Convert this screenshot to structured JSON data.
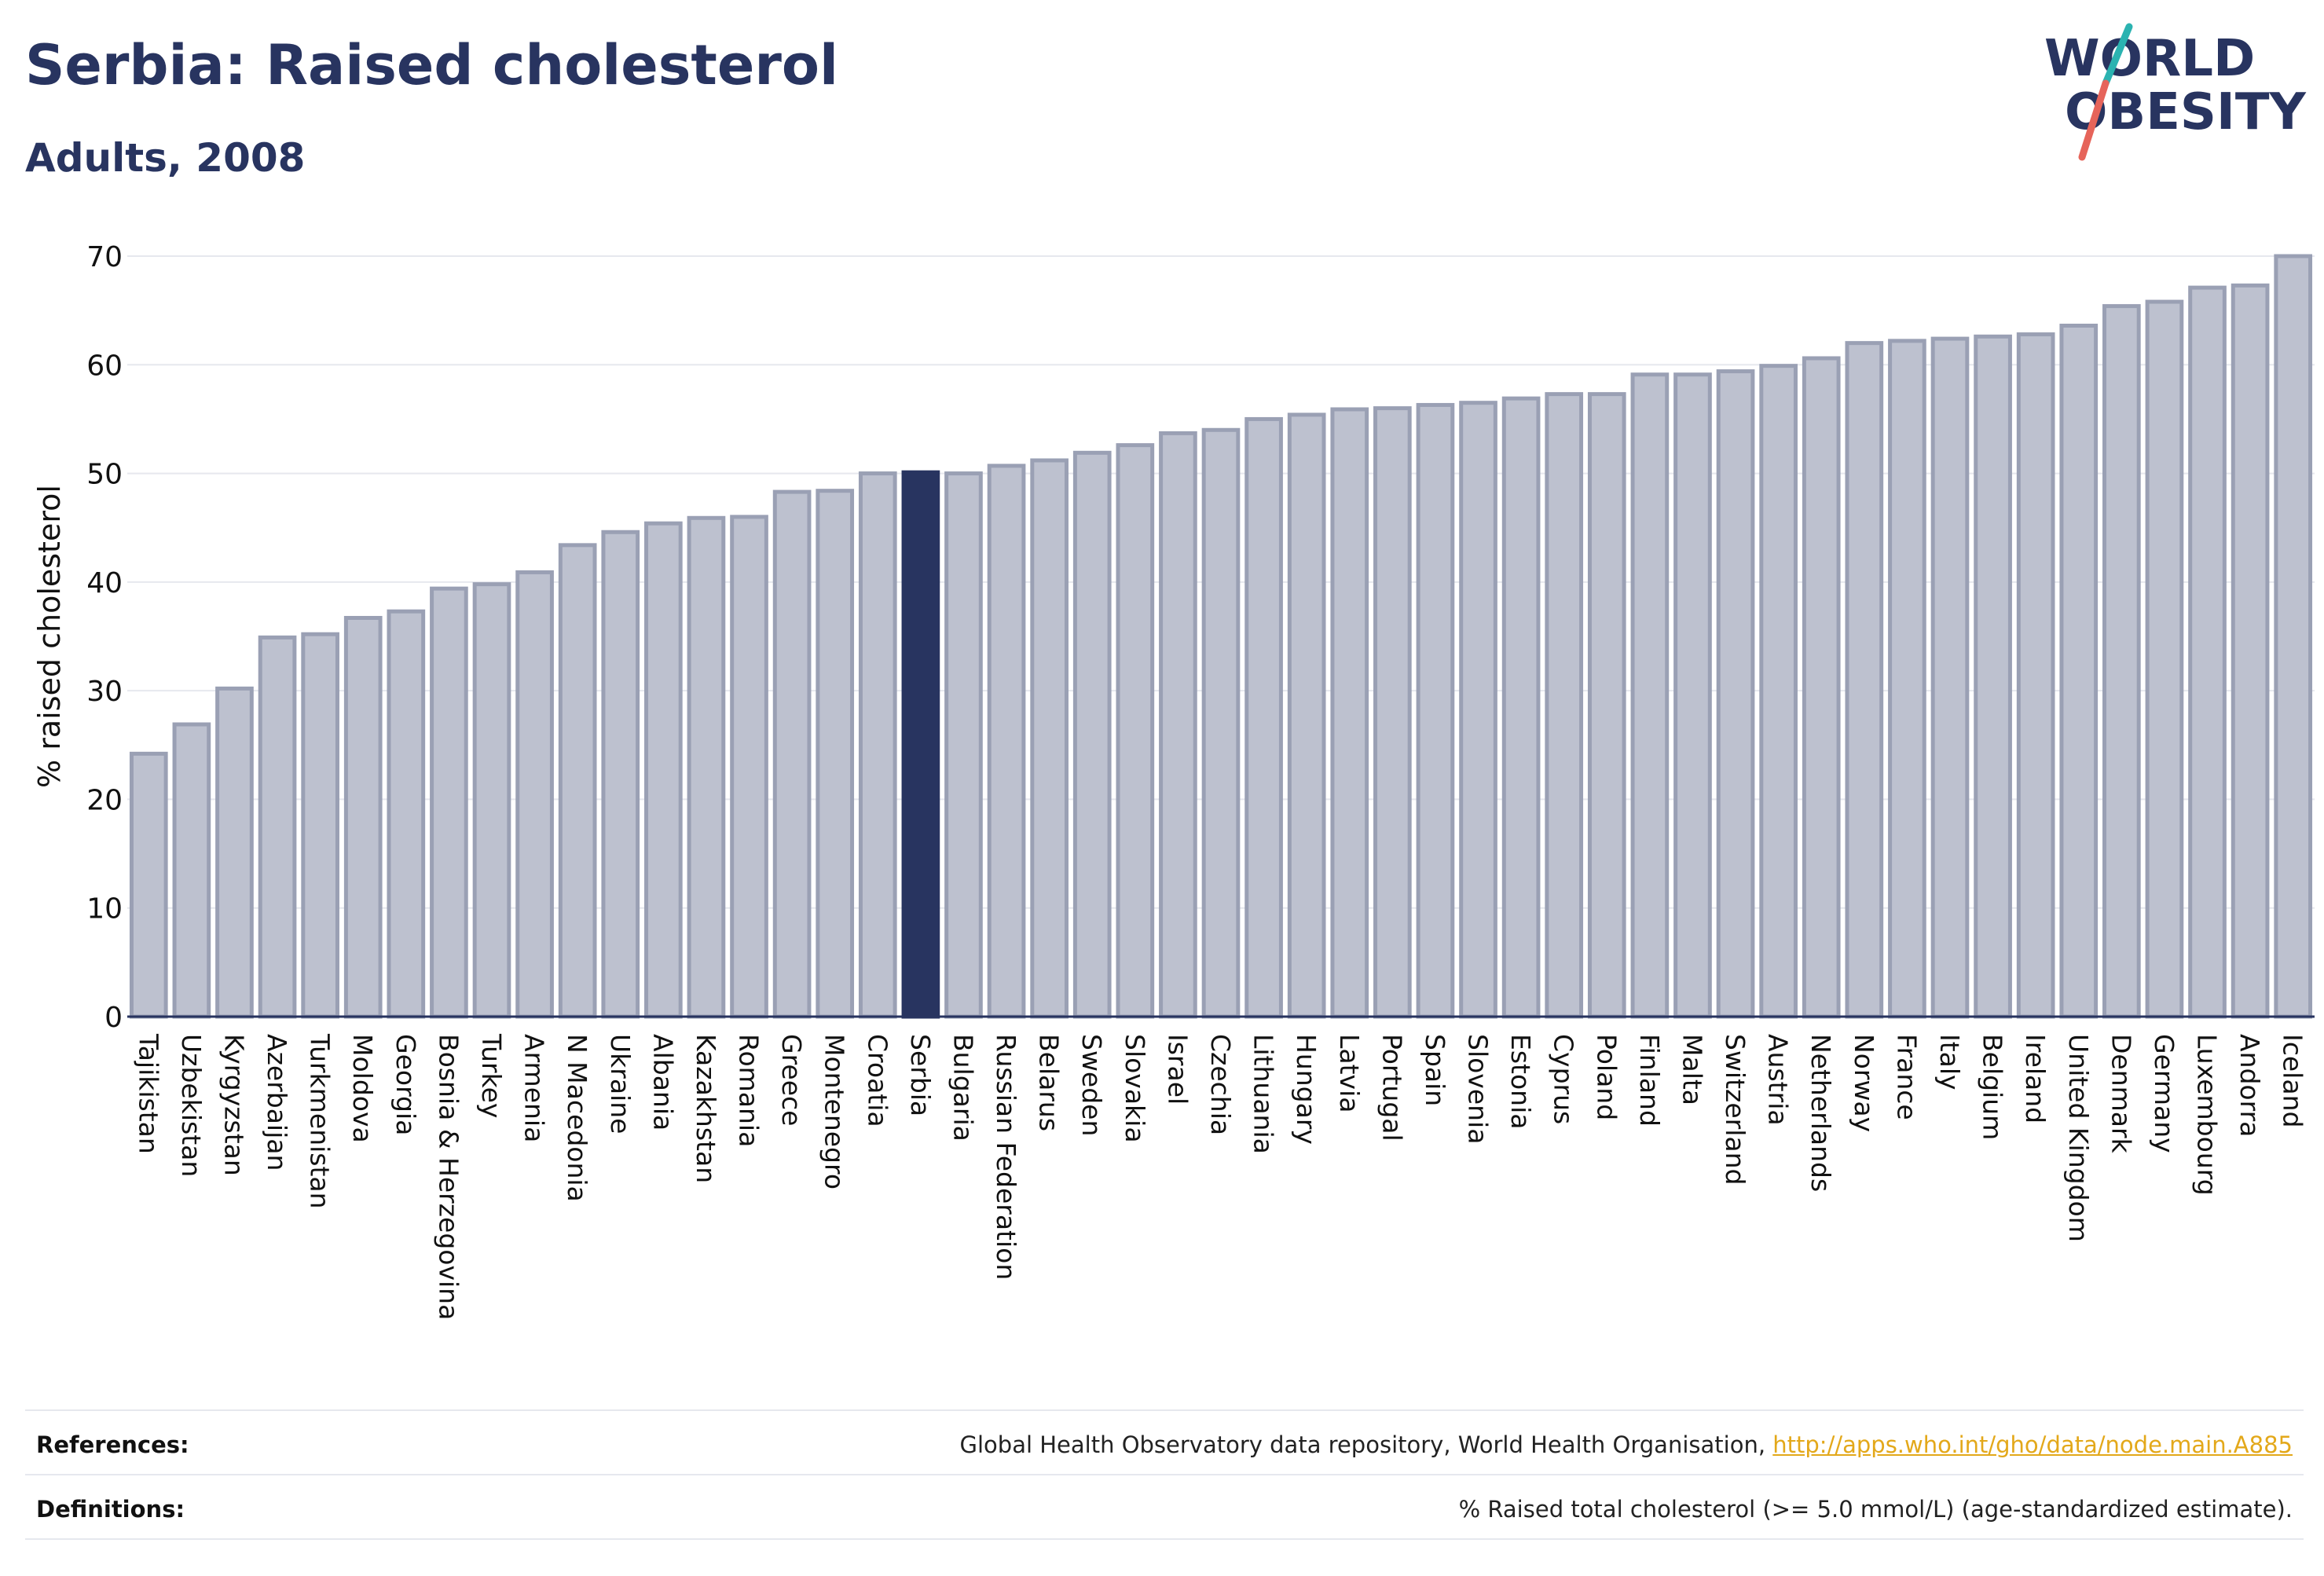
{
  "header": {
    "title": "Serbia: Raised cholesterol",
    "subtitle": "Adults, 2008",
    "logo": {
      "line1": "WORLD",
      "line2": "OBESITY"
    }
  },
  "footer": {
    "references_label": "References:",
    "references_text": "Global Health Observatory data repository, World Health Organisation, ",
    "references_link": "http://apps.who.int/gho/data/node.main.A885",
    "definitions_label": "Definitions:",
    "definitions_text": "% Raised total cholesterol (>= 5.0 mmol/L) (age-standardized estimate)."
  },
  "colors": {
    "highlight": "#283460",
    "bar_fill": "#bdc1cf",
    "bar_stroke": "#9aa0b4",
    "title": "#283460",
    "link": "#e3a81a"
  },
  "chart_data": {
    "type": "bar",
    "title": "Serbia: Raised cholesterol",
    "subtitle": "Adults, 2008",
    "ylabel": "% raised cholesterol",
    "xlabel": "",
    "ylim": [
      0,
      70
    ],
    "yticks": [
      0,
      10,
      20,
      30,
      40,
      50,
      60,
      70
    ],
    "grid": true,
    "highlight": "Serbia",
    "categories": [
      "Tajikistan",
      "Uzbekistan",
      "Kyrgyzstan",
      "Azerbaijan",
      "Turkmenistan",
      "Moldova",
      "Georgia",
      "Bosnia & Herzegovina",
      "Turkey",
      "Armenia",
      "N Macedonia",
      "Ukraine",
      "Albania",
      "Kazakhstan",
      "Romania",
      "Greece",
      "Montenegro",
      "Croatia",
      "Serbia",
      "Bulgaria",
      "Russian Federation",
      "Belarus",
      "Sweden",
      "Slovakia",
      "Israel",
      "Czechia",
      "Lithuania",
      "Hungary",
      "Latvia",
      "Portugal",
      "Spain",
      "Slovenia",
      "Estonia",
      "Cyprus",
      "Poland",
      "Finland",
      "Malta",
      "Switzerland",
      "Austria",
      "Netherlands",
      "Norway",
      "France",
      "Italy",
      "Belgium",
      "Ireland",
      "United Kingdom",
      "Denmark",
      "Germany",
      "Luxembourg",
      "Andorra",
      "Iceland"
    ],
    "values": [
      24.2,
      26.9,
      30.2,
      34.9,
      35.2,
      36.7,
      37.3,
      39.4,
      39.8,
      40.9,
      43.4,
      44.6,
      45.4,
      45.9,
      46.0,
      48.3,
      48.4,
      50.0,
      50.1,
      50.0,
      50.7,
      51.2,
      51.9,
      52.6,
      53.7,
      54.0,
      55.0,
      55.4,
      55.9,
      56.0,
      56.3,
      56.5,
      56.9,
      57.3,
      57.3,
      59.1,
      59.1,
      59.4,
      59.9,
      60.6,
      62.0,
      62.2,
      62.4,
      62.6,
      62.8,
      63.6,
      65.4,
      65.8,
      67.1,
      67.3,
      70.0
    ]
  }
}
